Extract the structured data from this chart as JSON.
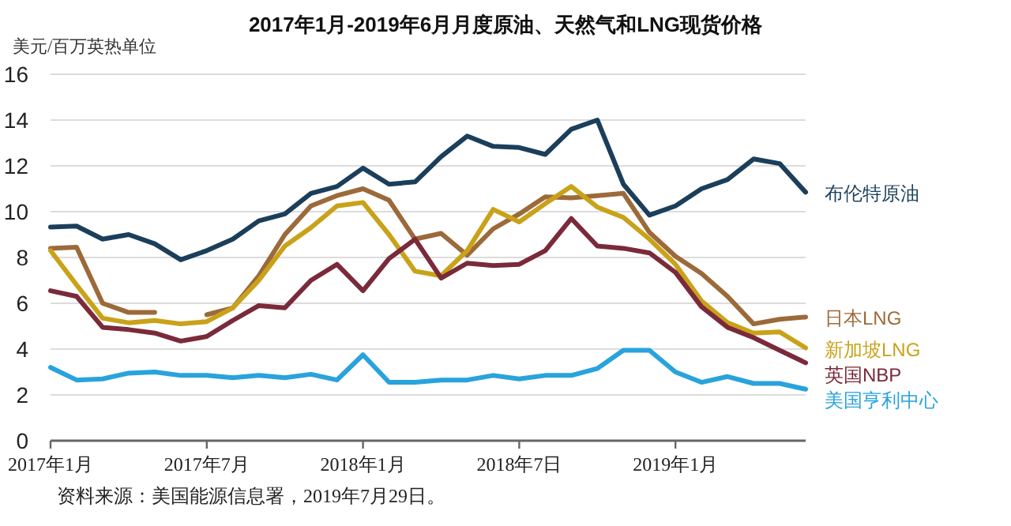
{
  "chart_data": {
    "type": "line",
    "title": "2017年1月-2019年6月月度原油、天然气和LNG现货价格",
    "ylabel": "美元/百万英热单位",
    "x": [
      "2017-01",
      "2017-02",
      "2017-03",
      "2017-04",
      "2017-05",
      "2017-06",
      "2017-07",
      "2017-08",
      "2017-09",
      "2017-10",
      "2017-11",
      "2017-12",
      "2018-01",
      "2018-02",
      "2018-03",
      "2018-04",
      "2018-05",
      "2018-06",
      "2018-07",
      "2018-08",
      "2018-09",
      "2018-10",
      "2018-11",
      "2018-12",
      "2019-01",
      "2019-02",
      "2019-03",
      "2019-04",
      "2019-05",
      "2019-06"
    ],
    "series": [
      {
        "name": "布伦特原油",
        "color": "#1b3f5a",
        "values": [
          9.33,
          9.37,
          8.8,
          9.0,
          8.6,
          7.9,
          8.3,
          8.8,
          9.6,
          9.9,
          10.8,
          11.1,
          11.9,
          11.2,
          11.3,
          12.4,
          13.3,
          12.85,
          12.8,
          12.5,
          13.6,
          14.0,
          11.2,
          9.85,
          10.25,
          11.0,
          11.4,
          12.3,
          12.1,
          10.85
        ]
      },
      {
        "name": "日本LNG",
        "color": "#9c6a3a",
        "values": [
          8.4,
          8.45,
          6.0,
          5.6,
          5.6,
          null,
          5.5,
          5.8,
          7.2,
          9.0,
          10.25,
          10.7,
          11.0,
          10.5,
          8.8,
          9.05,
          8.1,
          9.25,
          9.9,
          10.65,
          10.6,
          10.7,
          10.8,
          9.1,
          8.05,
          7.3,
          6.3,
          5.1,
          5.3,
          5.4
        ]
      },
      {
        "name": "新加坡LNG",
        "color": "#c9a21a",
        "values": [
          8.3,
          6.8,
          5.35,
          5.15,
          5.25,
          5.1,
          5.2,
          5.8,
          7.0,
          8.5,
          9.3,
          10.25,
          10.4,
          9.0,
          7.4,
          7.2,
          8.3,
          10.1,
          9.55,
          10.35,
          11.1,
          10.2,
          9.75,
          8.8,
          7.7,
          6.1,
          5.15,
          4.7,
          4.75,
          4.05
        ]
      },
      {
        "name": "英国NBP",
        "color": "#7a2a3a",
        "values": [
          6.55,
          6.3,
          4.95,
          4.85,
          4.7,
          4.35,
          4.55,
          5.25,
          5.9,
          5.8,
          7.0,
          7.7,
          6.55,
          7.95,
          8.8,
          7.1,
          7.75,
          7.65,
          7.7,
          8.3,
          9.7,
          8.5,
          8.4,
          8.2,
          7.35,
          5.85,
          4.95,
          4.5,
          3.95,
          3.4
        ]
      },
      {
        "name": "美国亨利中心",
        "color": "#29a3dc",
        "values": [
          3.2,
          2.65,
          2.7,
          2.95,
          3.0,
          2.85,
          2.85,
          2.75,
          2.85,
          2.75,
          2.9,
          2.65,
          3.75,
          2.55,
          2.55,
          2.65,
          2.65,
          2.85,
          2.7,
          2.85,
          2.85,
          3.15,
          3.95,
          3.95,
          3.0,
          2.55,
          2.8,
          2.5,
          2.5,
          2.25
        ]
      }
    ],
    "xlim": [
      "2017-01",
      "2019-06"
    ],
    "xticks": [
      {
        "value": "2017-01",
        "label": "2017年1月"
      },
      {
        "value": "2017-07",
        "label": "2017年7月"
      },
      {
        "value": "2018-01",
        "label": "2018年1月"
      },
      {
        "value": "2018-07",
        "label": "2018年7日"
      },
      {
        "value": "2019-01",
        "label": "2019年1月"
      }
    ],
    "ylim": [
      0,
      16
    ],
    "yticks": [
      0,
      2,
      4,
      6,
      8,
      10,
      12,
      14,
      16
    ],
    "grid": "y",
    "line_style": "solid",
    "annotations": [
      "资料来源：美国能源信息署，2019年7月29日。"
    ]
  }
}
